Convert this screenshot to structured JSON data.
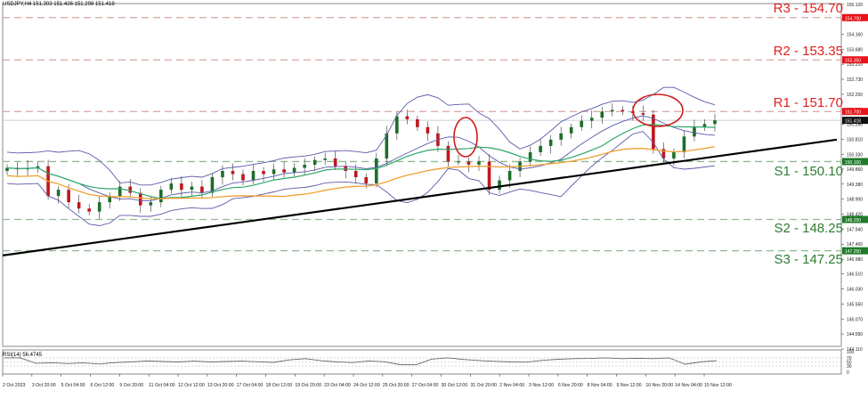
{
  "header": {
    "symbol": "USDJPY,H4",
    "ohlc": "151.303 151.426 151.298 151.418",
    "title": "USDJPY,H4  151.303 151.426 151.298 151.418"
  },
  "levels": {
    "r3": {
      "label": "R3 - 154.70",
      "value": 154.7,
      "tag": "154.700"
    },
    "r2": {
      "label": "R2 - 153.35",
      "value": 153.35,
      "tag": "153.350"
    },
    "r1": {
      "label": "R1 - 151.70",
      "value": 151.7,
      "tag": "151.700"
    },
    "s1": {
      "label": "S1 - 150.10",
      "value": 150.1,
      "tag": "150.100"
    },
    "s2": {
      "label": "S2 - 148.25",
      "value": 148.25,
      "tag": "148.250"
    },
    "s3": {
      "label": "S3 - 147.25",
      "value": 147.25,
      "tag": "147.250"
    }
  },
  "current_price": {
    "tag": "151.418",
    "value": 151.418
  },
  "rsi": {
    "title": "RSI(14) 56.4745",
    "value": 56.4745,
    "ticks": [
      "100",
      "70",
      "50",
      "30",
      "0"
    ]
  },
  "colors": {
    "resistance": "#e02020",
    "resistance_line": "#d9a3a3",
    "support": "#2e7d32",
    "support_line": "#93b893",
    "bull_candle": "#1b6e2a",
    "bear_candle": "#c0161c",
    "bollinger": "#5a5aa8",
    "ma_fast": "#2ca66a",
    "ma_slow": "#f0a030",
    "trendline": "#000000",
    "highlight_ellipse": "#d21a1a"
  },
  "chart_data": {
    "type": "candlestick",
    "title": "USDJPY,H4",
    "subtitle": "151.303 151.426 151.298 151.418",
    "xlabel": "",
    "ylabel": "",
    "ylim": [
      143.9,
      155.3
    ],
    "y_ticks": [
      "155.120",
      "154.640",
      "154.160",
      "153.680",
      "153.210",
      "152.730",
      "152.250",
      "151.770",
      "151.290",
      "150.810",
      "150.330",
      "149.860",
      "149.380",
      "148.900",
      "148.420",
      "147.940",
      "147.460",
      "146.980",
      "146.510",
      "146.030",
      "145.550",
      "145.070",
      "144.590",
      "144.110"
    ],
    "x_ticks": [
      "2 Oct 2023",
      "3 Oct 20:00",
      "5 Oct 04:00",
      "6 Oct 12:00",
      "9 Oct 20:00",
      "11 Oct 04:00",
      "12 Oct 12:00",
      "13 Oct 20:00",
      "17 Oct 04:00",
      "18 Oct 12:00",
      "19 Oct 20:00",
      "23 Oct 04:00",
      "24 Oct 12:00",
      "25 Oct 20:00",
      "27 Oct 04:00",
      "30 Oct 12:00",
      "31 Oct 20:00",
      "2 Nov 04:00",
      "3 Nov 12:00",
      "6 Nov 20:00",
      "8 Nov 04:00",
      "9 Nov 12:00",
      "10 Nov 20:00",
      "14 Nov 04:00",
      "15 Nov 12:00"
    ],
    "horizontal_levels": [
      {
        "name": "R3",
        "value": 154.7
      },
      {
        "name": "R2",
        "value": 153.35
      },
      {
        "name": "R1",
        "value": 151.7
      },
      {
        "name": "S1",
        "value": 150.1
      },
      {
        "name": "S2",
        "value": 148.25
      },
      {
        "name": "S3",
        "value": 147.25
      }
    ],
    "trendline": {
      "start": {
        "x": "2 Oct 2023",
        "y": 147.1
      },
      "end": {
        "x": "15 Nov 12:00",
        "y": 150.8
      }
    },
    "annotations": [
      "Ellipse around 31 Oct peak (~151.7)",
      "Ellipse around 10-13 Nov peak (~151.9)"
    ],
    "close_series_approx": [
      149.9,
      149.85,
      149.9,
      149.95,
      149.0,
      149.2,
      148.8,
      148.6,
      148.5,
      148.8,
      149.0,
      149.3,
      149.1,
      148.7,
      148.8,
      149.2,
      149.4,
      149.2,
      149.3,
      149.1,
      149.6,
      149.8,
      149.7,
      149.5,
      149.8,
      149.7,
      149.85,
      149.75,
      149.9,
      150.0,
      150.15,
      150.2,
      149.95,
      149.8,
      149.6,
      149.4,
      150.2,
      151.0,
      151.55,
      151.45,
      151.2,
      151.0,
      150.6,
      150.1,
      150.1,
      150.0,
      150.1,
      149.2,
      149.5,
      149.8,
      150.1,
      150.4,
      150.6,
      150.8,
      151.0,
      151.2,
      151.4,
      151.5,
      151.7,
      151.75,
      151.7,
      151.65,
      151.6,
      150.5,
      150.2,
      150.4,
      150.9,
      151.2,
      151.3,
      151.418
    ],
    "series": [
      {
        "name": "Price (candles)",
        "type": "candlestick"
      },
      {
        "name": "Bollinger Bands",
        "type": "line"
      },
      {
        "name": "MA fast (green)",
        "type": "line"
      },
      {
        "name": "MA slow (orange)",
        "type": "line"
      }
    ],
    "rsi_panel": {
      "title": "RSI(14) 56.4745",
      "ylim": [
        0,
        100
      ],
      "levels": [
        70,
        50,
        30
      ],
      "values_approx": [
        70,
        70,
        43,
        46,
        42,
        45,
        40,
        47,
        50,
        55,
        52,
        50,
        54,
        50,
        52,
        54,
        51,
        48,
        60,
        66,
        56,
        50,
        47,
        55,
        51,
        37,
        36,
        64,
        70,
        62,
        57,
        53,
        50,
        49,
        58,
        63,
        66,
        67,
        70,
        66,
        68,
        66,
        70,
        39,
        50,
        56
      ]
    }
  }
}
